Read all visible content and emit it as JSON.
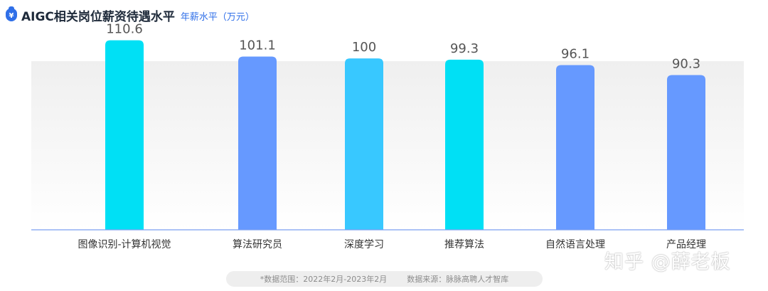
{
  "header": {
    "icon": "yen-bag-icon",
    "icon_glyph": "¥",
    "title": "AIGC相关岗位薪资待遇水平",
    "subtitle": "年薪水平（万元）"
  },
  "chart_data": {
    "type": "bar",
    "categories": [
      "图像识别-计算机视觉",
      "算法研究员",
      "深度学习",
      "推荐算法",
      "自然语言处理",
      "产品经理"
    ],
    "values": [
      110.6,
      101.1,
      100,
      99.3,
      96.1,
      90.3
    ],
    "value_labels": [
      "110.6",
      "101.1",
      "100",
      "99.3",
      "96.1",
      "90.3"
    ],
    "bar_colors": [
      "#00e0f5",
      "#6699ff",
      "#38c8ff",
      "#00e0f5",
      "#6699ff",
      "#6699ff"
    ],
    "ylim": [
      0,
      120
    ],
    "grid": false,
    "legend": "none"
  },
  "footer": {
    "range": "*数据范围：2022年2月-2023年2月",
    "source": "数据来源：脉脉高聘人才智库"
  },
  "watermark": "知乎 @薛老板"
}
